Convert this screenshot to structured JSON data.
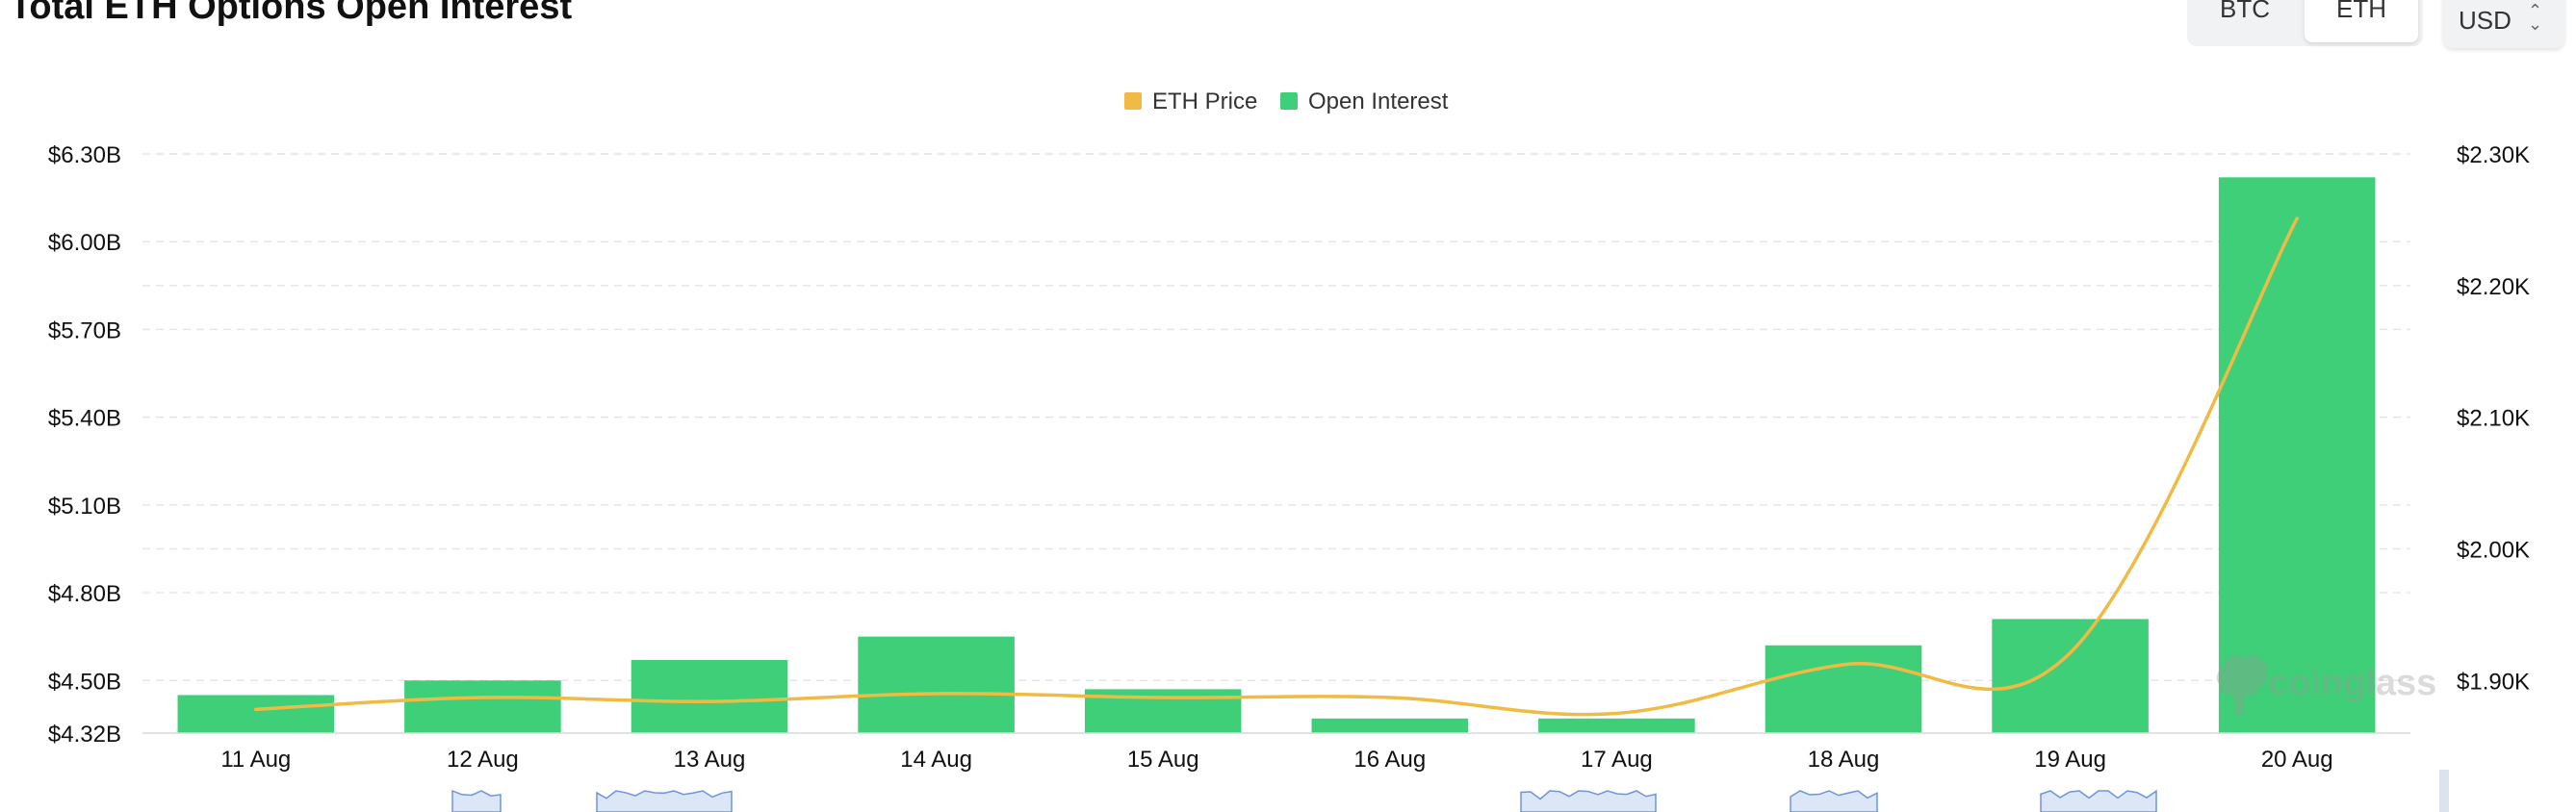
{
  "header": {
    "title": "Total ETH Options Open Interest",
    "coin_tabs": [
      {
        "label": "BTC",
        "selected": false
      },
      {
        "label": "ETH",
        "selected": true
      }
    ],
    "currency_select": {
      "value": "USD",
      "icon": "chevron-updown-icon"
    }
  },
  "watermark": {
    "text": "coinglass",
    "icon": "coinglass-logo-icon"
  },
  "colors": {
    "open_interest": "#3ecf78",
    "eth_price": "#f0bb45",
    "grid": "#e6e6e6",
    "axis_text": "#111111"
  },
  "chart_data": {
    "type": "bar",
    "title": "Total ETH Options Open Interest",
    "categories": [
      "11 Aug",
      "12 Aug",
      "13 Aug",
      "14 Aug",
      "15 Aug",
      "16 Aug",
      "17 Aug",
      "18 Aug",
      "19 Aug",
      "20 Aug"
    ],
    "legend": {
      "position": "top-center",
      "items": [
        "ETH Price",
        "Open Interest"
      ]
    },
    "series": [
      {
        "name": "Open Interest",
        "type": "bar",
        "axis": "left",
        "values": [
          4.45,
          4.5,
          4.57,
          4.65,
          4.47,
          4.37,
          4.37,
          4.62,
          4.71,
          6.22
        ]
      },
      {
        "name": "ETH Price",
        "type": "line",
        "axis": "right",
        "values": [
          1878,
          1887,
          1884,
          1890,
          1887,
          1887,
          1875,
          1912,
          1921,
          2251
        ]
      }
    ],
    "y_left": {
      "ticks": [
        "$4.32B",
        "$4.50B",
        "$4.80B",
        "$5.10B",
        "$5.40B",
        "$5.70B",
        "$6.00B",
        "$6.30B"
      ],
      "tick_values": [
        4.32,
        4.5,
        4.8,
        5.1,
        5.4,
        5.7,
        6.0,
        6.3
      ],
      "ylim": [
        4.32,
        6.3
      ]
    },
    "y_right": {
      "ticks": [
        "$1.90K",
        "$2.00K",
        "$2.10K",
        "$2.20K",
        "$2.30K"
      ],
      "tick_values": [
        1900,
        2000,
        2100,
        2200,
        2300
      ],
      "ylim": [
        1860,
        2300
      ]
    },
    "grid": true
  }
}
